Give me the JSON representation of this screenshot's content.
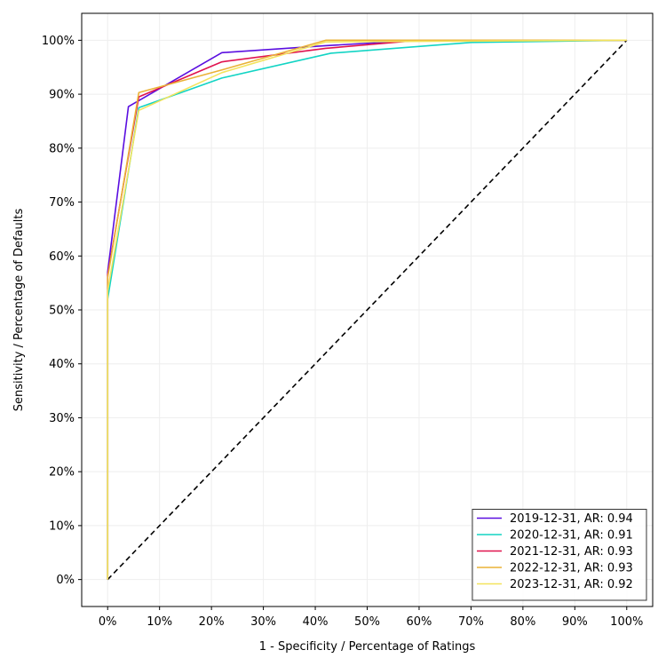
{
  "chart_data": {
    "type": "line",
    "title": "",
    "xlabel": "1 - Specificity / Percentage of Ratings",
    "ylabel": "Sensitivity / Percentage of Defaults",
    "xlim": [
      -0.05,
      1.05
    ],
    "ylim": [
      -0.05,
      1.05
    ],
    "x_ticks": [
      0,
      0.1,
      0.2,
      0.3,
      0.4,
      0.5,
      0.6,
      0.7,
      0.8,
      0.9,
      1.0
    ],
    "x_tick_labels": [
      "0%",
      "10%",
      "20%",
      "30%",
      "40%",
      "50%",
      "60%",
      "70%",
      "80%",
      "90%",
      "100%"
    ],
    "y_ticks": [
      0,
      0.1,
      0.2,
      0.3,
      0.4,
      0.5,
      0.6,
      0.7,
      0.8,
      0.9,
      1.0
    ],
    "y_tick_labels": [
      "0%",
      "10%",
      "20%",
      "30%",
      "40%",
      "50%",
      "60%",
      "70%",
      "80%",
      "90%",
      "100%"
    ],
    "grid": true,
    "legend_position": "lower-right",
    "reference_line": {
      "x": [
        0,
        1
      ],
      "y": [
        0,
        1
      ],
      "color": "#000000",
      "style": "dashed"
    },
    "series": [
      {
        "name": "2019-12-31, AR: 0.94",
        "color": "#5a0ee0",
        "x": [
          0,
          0,
          0.04,
          0.22,
          0.42,
          0.6,
          1.0
        ],
        "y": [
          0,
          0.57,
          0.877,
          0.977,
          0.99,
          1.0,
          1.0
        ]
      },
      {
        "name": "2020-12-31, AR: 0.91",
        "color": "#12d4c4",
        "x": [
          0,
          0,
          0.06,
          0.22,
          0.43,
          0.7,
          1.0
        ],
        "y": [
          0,
          0.52,
          0.875,
          0.93,
          0.976,
          0.996,
          1.0
        ]
      },
      {
        "name": "2021-12-31, AR: 0.93",
        "color": "#e0134f",
        "x": [
          0,
          0,
          0.06,
          0.22,
          0.42,
          0.6,
          1.0
        ],
        "y": [
          0,
          0.565,
          0.895,
          0.96,
          0.985,
          1.0,
          1.0
        ]
      },
      {
        "name": "2022-12-31, AR: 0.93",
        "color": "#eab236",
        "x": [
          0,
          0,
          0.06,
          0.22,
          0.42,
          0.6,
          1.0
        ],
        "y": [
          0,
          0.56,
          0.903,
          0.945,
          1.0,
          1.0,
          1.0
        ]
      },
      {
        "name": "2023-12-31, AR: 0.92",
        "color": "#f3e35c",
        "x": [
          0,
          0,
          0.06,
          0.22,
          0.42,
          0.6,
          1.0
        ],
        "y": [
          0,
          0.535,
          0.87,
          0.94,
          0.997,
          0.998,
          1.0
        ]
      }
    ]
  }
}
